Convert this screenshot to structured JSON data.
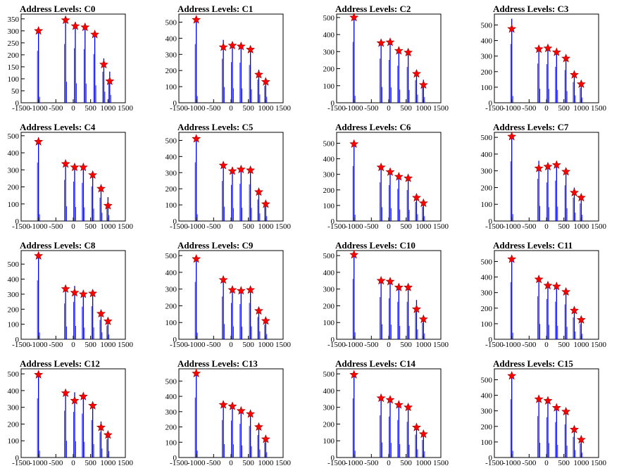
{
  "chart_data": [
    {
      "type": "bar",
      "title": "Address Levels: C0",
      "xlim": [
        -1500,
        1500
      ],
      "ylim": [
        0,
        370
      ],
      "xticks": [
        "-1500",
        "-1000",
        "-500",
        "0",
        "500",
        "1000",
        "1500"
      ],
      "yticks": [
        "0",
        "50",
        "100",
        "150",
        "200",
        "250",
        "300",
        "350"
      ],
      "peaks": [
        {
          "x": -1000,
          "y": 310,
          "star": 300
        },
        {
          "x": -220,
          "y": 350,
          "star": 345
        },
        {
          "x": 60,
          "y": 325,
          "star": 320
        },
        {
          "x": 340,
          "y": 320,
          "star": 315
        },
        {
          "x": 620,
          "y": 290,
          "star": 285
        },
        {
          "x": 880,
          "y": 185,
          "star": 160
        },
        {
          "x": 1050,
          "y": 130,
          "star": 90
        }
      ]
    },
    {
      "type": "bar",
      "title": "Address Levels: C1",
      "xlim": [
        -1500,
        1500
      ],
      "ylim": [
        0,
        550
      ],
      "xticks": [
        "-1500",
        "-1000",
        "-500",
        "0",
        "500",
        "1000",
        "1500"
      ],
      "yticks": [
        "0",
        "100",
        "200",
        "300",
        "400",
        "500"
      ],
      "peaks": [
        {
          "x": -1000,
          "y": 520,
          "star": 515
        },
        {
          "x": -220,
          "y": 390,
          "star": 345
        },
        {
          "x": 40,
          "y": 360,
          "star": 355
        },
        {
          "x": 290,
          "y": 355,
          "star": 350
        },
        {
          "x": 560,
          "y": 335,
          "star": 330
        },
        {
          "x": 800,
          "y": 205,
          "star": 175
        },
        {
          "x": 1000,
          "y": 150,
          "star": 130
        }
      ]
    },
    {
      "type": "bar",
      "title": "Address Levels: C2",
      "xlim": [
        -1500,
        1500
      ],
      "ylim": [
        0,
        520
      ],
      "xticks": [
        "-1500",
        "-1000",
        "-500",
        "0",
        "500",
        "1000",
        "1500"
      ],
      "yticks": [
        "0",
        "100",
        "200",
        "300",
        "400",
        "500"
      ],
      "peaks": [
        {
          "x": -1000,
          "y": 510,
          "star": 500
        },
        {
          "x": -220,
          "y": 370,
          "star": 350
        },
        {
          "x": 40,
          "y": 360,
          "star": 355
        },
        {
          "x": 290,
          "y": 310,
          "star": 305
        },
        {
          "x": 560,
          "y": 300,
          "star": 295
        },
        {
          "x": 800,
          "y": 190,
          "star": 170
        },
        {
          "x": 1000,
          "y": 135,
          "star": 105
        }
      ]
    },
    {
      "type": "bar",
      "title": "Address Levels: C3",
      "xlim": [
        -1500,
        1500
      ],
      "ylim": [
        0,
        570
      ],
      "xticks": [
        "-1500",
        "-1000",
        "-500",
        "0",
        "500",
        "1000",
        "1500"
      ],
      "yticks": [
        "0",
        "100",
        "200",
        "300",
        "400",
        "500"
      ],
      "peaks": [
        {
          "x": -1000,
          "y": 540,
          "star": 475
        },
        {
          "x": -220,
          "y": 360,
          "star": 345
        },
        {
          "x": 40,
          "y": 355,
          "star": 350
        },
        {
          "x": 290,
          "y": 330,
          "star": 325
        },
        {
          "x": 560,
          "y": 300,
          "star": 285
        },
        {
          "x": 800,
          "y": 190,
          "star": 180
        },
        {
          "x": 1000,
          "y": 135,
          "star": 120
        }
      ]
    },
    {
      "type": "bar",
      "title": "Address Levels: C4",
      "xlim": [
        -1500,
        1500
      ],
      "ylim": [
        0,
        520
      ],
      "xticks": [
        "-1500",
        "-1000",
        "-500",
        "0",
        "500",
        "1000",
        "1500"
      ],
      "yticks": [
        "0",
        "100",
        "200",
        "300",
        "400",
        "500"
      ],
      "peaks": [
        {
          "x": -1000,
          "y": 490,
          "star": 465
        },
        {
          "x": -220,
          "y": 345,
          "star": 335
        },
        {
          "x": 40,
          "y": 330,
          "star": 315
        },
        {
          "x": 290,
          "y": 320,
          "star": 315
        },
        {
          "x": 560,
          "y": 290,
          "star": 270
        },
        {
          "x": 800,
          "y": 195,
          "star": 190
        },
        {
          "x": 1000,
          "y": 140,
          "star": 90
        }
      ]
    },
    {
      "type": "bar",
      "title": "Address Levels: C5",
      "xlim": [
        -1500,
        1500
      ],
      "ylim": [
        0,
        550
      ],
      "xticks": [
        "-1500",
        "-1000",
        "-500",
        "0",
        "500",
        "1000",
        "1500"
      ],
      "yticks": [
        "0",
        "100",
        "200",
        "300",
        "400",
        "500"
      ],
      "peaks": [
        {
          "x": -1000,
          "y": 520,
          "star": 510
        },
        {
          "x": -220,
          "y": 355,
          "star": 345
        },
        {
          "x": 40,
          "y": 320,
          "star": 310
        },
        {
          "x": 290,
          "y": 330,
          "star": 320
        },
        {
          "x": 560,
          "y": 325,
          "star": 315
        },
        {
          "x": 800,
          "y": 190,
          "star": 180
        },
        {
          "x": 1000,
          "y": 125,
          "star": 105
        }
      ]
    },
    {
      "type": "bar",
      "title": "Address Levels: C6",
      "xlim": [
        -1500,
        1500
      ],
      "ylim": [
        0,
        570
      ],
      "xticks": [
        "-1500",
        "-1000",
        "-500",
        "0",
        "500",
        "1000",
        "1500"
      ],
      "yticks": [
        "0",
        "100",
        "200",
        "300",
        "400",
        "500"
      ],
      "peaks": [
        {
          "x": -1000,
          "y": 505,
          "star": 495
        },
        {
          "x": -220,
          "y": 355,
          "star": 345
        },
        {
          "x": 40,
          "y": 330,
          "star": 315
        },
        {
          "x": 290,
          "y": 295,
          "star": 285
        },
        {
          "x": 560,
          "y": 285,
          "star": 275
        },
        {
          "x": 800,
          "y": 175,
          "star": 150
        },
        {
          "x": 1000,
          "y": 130,
          "star": 115
        }
      ]
    },
    {
      "type": "bar",
      "title": "Address Levels: C7",
      "xlim": [
        -1500,
        1500
      ],
      "ylim": [
        0,
        530
      ],
      "xticks": [
        "-1500",
        "-1000",
        "-500",
        "0",
        "500",
        "1000",
        "1500"
      ],
      "yticks": [
        "0",
        "100",
        "200",
        "300",
        "400",
        "500"
      ],
      "peaks": [
        {
          "x": -1000,
          "y": 510,
          "star": 505
        },
        {
          "x": -220,
          "y": 360,
          "star": 315
        },
        {
          "x": 40,
          "y": 330,
          "star": 325
        },
        {
          "x": 290,
          "y": 345,
          "star": 335
        },
        {
          "x": 560,
          "y": 305,
          "star": 295
        },
        {
          "x": 800,
          "y": 200,
          "star": 170
        },
        {
          "x": 1000,
          "y": 150,
          "star": 140
        }
      ]
    },
    {
      "type": "bar",
      "title": "Address Levels: C8",
      "xlim": [
        -1500,
        1500
      ],
      "ylim": [
        0,
        590
      ],
      "xticks": [
        "-1500",
        "-1000",
        "-500",
        "0",
        "500",
        "1000",
        "1500"
      ],
      "yticks": [
        "0",
        "100",
        "200",
        "300",
        "400",
        "500"
      ],
      "peaks": [
        {
          "x": -1000,
          "y": 560,
          "star": 555
        },
        {
          "x": -220,
          "y": 340,
          "star": 335
        },
        {
          "x": 40,
          "y": 355,
          "star": 310
        },
        {
          "x": 290,
          "y": 310,
          "star": 300
        },
        {
          "x": 560,
          "y": 315,
          "star": 305
        },
        {
          "x": 800,
          "y": 185,
          "star": 170
        },
        {
          "x": 1000,
          "y": 130,
          "star": 120
        }
      ]
    },
    {
      "type": "bar",
      "title": "Address Levels: C9",
      "xlim": [
        -1500,
        1500
      ],
      "ylim": [
        0,
        530
      ],
      "xticks": [
        "-1500",
        "-1000",
        "-500",
        "0",
        "500",
        "1000",
        "1500"
      ],
      "yticks": [
        "0",
        "100",
        "200",
        "300",
        "400",
        "500"
      ],
      "peaks": [
        {
          "x": -1000,
          "y": 490,
          "star": 480
        },
        {
          "x": -220,
          "y": 365,
          "star": 355
        },
        {
          "x": 40,
          "y": 310,
          "star": 295
        },
        {
          "x": 290,
          "y": 300,
          "star": 290
        },
        {
          "x": 560,
          "y": 310,
          "star": 295
        },
        {
          "x": 800,
          "y": 190,
          "star": 170
        },
        {
          "x": 1000,
          "y": 125,
          "star": 110
        }
      ]
    },
    {
      "type": "bar",
      "title": "Address Levels: C10",
      "xlim": [
        -1500,
        1500
      ],
      "ylim": [
        0,
        530
      ],
      "xticks": [
        "-1500",
        "-1000",
        "-500",
        "0",
        "500",
        "1000",
        "1500"
      ],
      "yticks": [
        "0",
        "100",
        "200",
        "300",
        "400",
        "500"
      ],
      "peaks": [
        {
          "x": -1000,
          "y": 515,
          "star": 505
        },
        {
          "x": -220,
          "y": 360,
          "star": 350
        },
        {
          "x": 40,
          "y": 350,
          "star": 345
        },
        {
          "x": 290,
          "y": 320,
          "star": 310
        },
        {
          "x": 560,
          "y": 320,
          "star": 310
        },
        {
          "x": 800,
          "y": 235,
          "star": 180
        },
        {
          "x": 1000,
          "y": 140,
          "star": 120
        }
      ]
    },
    {
      "type": "bar",
      "title": "Address Levels: C11",
      "xlim": [
        -1500,
        1500
      ],
      "ylim": [
        0,
        570
      ],
      "xticks": [
        "-1500",
        "-1000",
        "-500",
        "0",
        "500",
        "1000",
        "1500"
      ],
      "yticks": [
        "0",
        "100",
        "200",
        "300",
        "400",
        "500"
      ],
      "peaks": [
        {
          "x": -1000,
          "y": 525,
          "star": 515
        },
        {
          "x": -220,
          "y": 395,
          "star": 385
        },
        {
          "x": 40,
          "y": 370,
          "star": 345
        },
        {
          "x": 290,
          "y": 345,
          "star": 340
        },
        {
          "x": 560,
          "y": 320,
          "star": 305
        },
        {
          "x": 800,
          "y": 200,
          "star": 185
        },
        {
          "x": 1000,
          "y": 140,
          "star": 125
        }
      ]
    },
    {
      "type": "bar",
      "title": "Address Levels: C12",
      "xlim": [
        -1500,
        1500
      ],
      "ylim": [
        0,
        530
      ],
      "xticks": [
        "-1500",
        "-1000",
        "-500",
        "0",
        "500",
        "1000",
        "1500"
      ],
      "yticks": [
        "0",
        "100",
        "200",
        "300",
        "400",
        "500"
      ],
      "peaks": [
        {
          "x": -1000,
          "y": 505,
          "star": 495
        },
        {
          "x": -220,
          "y": 400,
          "star": 385
        },
        {
          "x": 40,
          "y": 390,
          "star": 340
        },
        {
          "x": 290,
          "y": 375,
          "star": 365
        },
        {
          "x": 560,
          "y": 320,
          "star": 310
        },
        {
          "x": 800,
          "y": 215,
          "star": 180
        },
        {
          "x": 1000,
          "y": 155,
          "star": 135
        }
      ]
    },
    {
      "type": "bar",
      "title": "Address Levels: C13",
      "xlim": [
        -1500,
        1500
      ],
      "ylim": [
        0,
        580
      ],
      "xticks": [
        "-1500",
        "-1000",
        "-500",
        "0",
        "500",
        "1000",
        "1500"
      ],
      "yticks": [
        "0",
        "100",
        "200",
        "300",
        "400",
        "500"
      ],
      "peaks": [
        {
          "x": -1000,
          "y": 560,
          "star": 550
        },
        {
          "x": -220,
          "y": 350,
          "star": 345
        },
        {
          "x": 40,
          "y": 345,
          "star": 335
        },
        {
          "x": 290,
          "y": 315,
          "star": 305
        },
        {
          "x": 560,
          "y": 295,
          "star": 285
        },
        {
          "x": 800,
          "y": 210,
          "star": 200
        },
        {
          "x": 1000,
          "y": 140,
          "star": 120
        }
      ]
    },
    {
      "type": "bar",
      "title": "Address Levels: C14",
      "xlim": [
        -1500,
        1500
      ],
      "ylim": [
        0,
        530
      ],
      "xticks": [
        "-1500",
        "-1000",
        "-500",
        "0",
        "500",
        "1000",
        "1500"
      ],
      "yticks": [
        "0",
        "100",
        "200",
        "300",
        "400",
        "500"
      ],
      "peaks": [
        {
          "x": -1000,
          "y": 505,
          "star": 495
        },
        {
          "x": -220,
          "y": 360,
          "star": 355
        },
        {
          "x": 40,
          "y": 350,
          "star": 345
        },
        {
          "x": 290,
          "y": 320,
          "star": 315
        },
        {
          "x": 560,
          "y": 305,
          "star": 300
        },
        {
          "x": 800,
          "y": 195,
          "star": 180
        },
        {
          "x": 1000,
          "y": 150,
          "star": 140
        }
      ]
    },
    {
      "type": "bar",
      "title": "Address Levels: C15",
      "xlim": [
        -1500,
        1500
      ],
      "ylim": [
        0,
        570
      ],
      "xticks": [
        "-1500",
        "-1000",
        "-500",
        "0",
        "500",
        "1000",
        "1500"
      ],
      "yticks": [
        "0",
        "100",
        "200",
        "300",
        "400",
        "500"
      ],
      "peaks": [
        {
          "x": -1000,
          "y": 535,
          "star": 525
        },
        {
          "x": -220,
          "y": 380,
          "star": 375
        },
        {
          "x": 40,
          "y": 370,
          "star": 365
        },
        {
          "x": 290,
          "y": 325,
          "star": 320
        },
        {
          "x": 560,
          "y": 305,
          "star": 295
        },
        {
          "x": 800,
          "y": 190,
          "star": 180
        },
        {
          "x": 1000,
          "y": 130,
          "star": 115
        }
      ]
    }
  ],
  "colors": {
    "bar": "#0000ee",
    "marker": "#ff0000",
    "marker_stroke": "#990000",
    "axis": "#000000",
    "background": "#ffffff"
  },
  "marker_icon": "star-marker-icon"
}
